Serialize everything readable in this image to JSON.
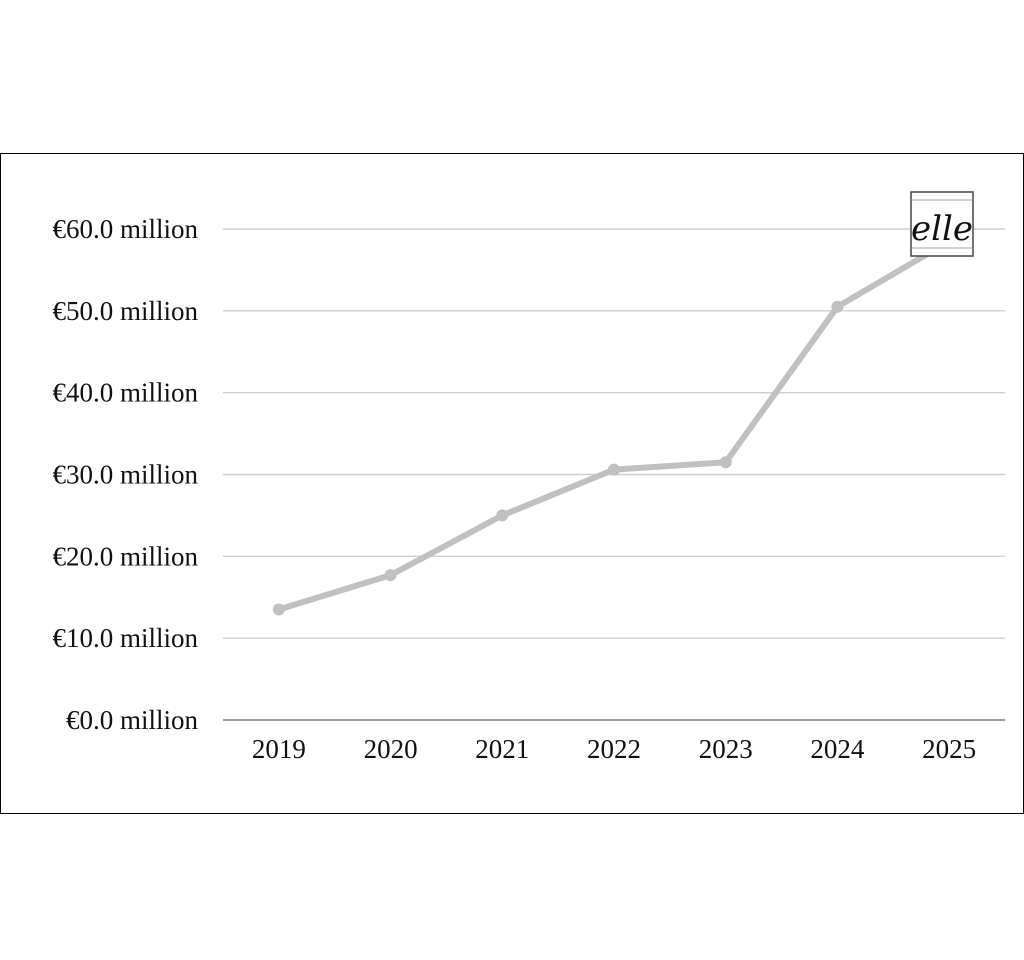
{
  "chart_data": {
    "type": "line",
    "categories": [
      "2019",
      "2020",
      "2021",
      "2022",
      "2023",
      "2024",
      "2025"
    ],
    "series": [
      {
        "values": [
          13.5,
          17.7,
          25.0,
          30.6,
          31.5,
          50.5,
          58.5
        ]
      }
    ],
    "ylim": [
      0,
      60
    ],
    "yticks": [
      0,
      10,
      20,
      30,
      40,
      50,
      60
    ],
    "ytick_labels": [
      "€0.0 million",
      "€10.0 million",
      "€20.0 million",
      "€30.0 million",
      "€40.0 million",
      "€50.0 million",
      "€60.0 million"
    ],
    "grid": true,
    "line_color": "#c0c0c0",
    "grid_color": "#cfcfcf",
    "axis_color": "#7f7f7f"
  },
  "logo": {
    "text": "elle"
  }
}
